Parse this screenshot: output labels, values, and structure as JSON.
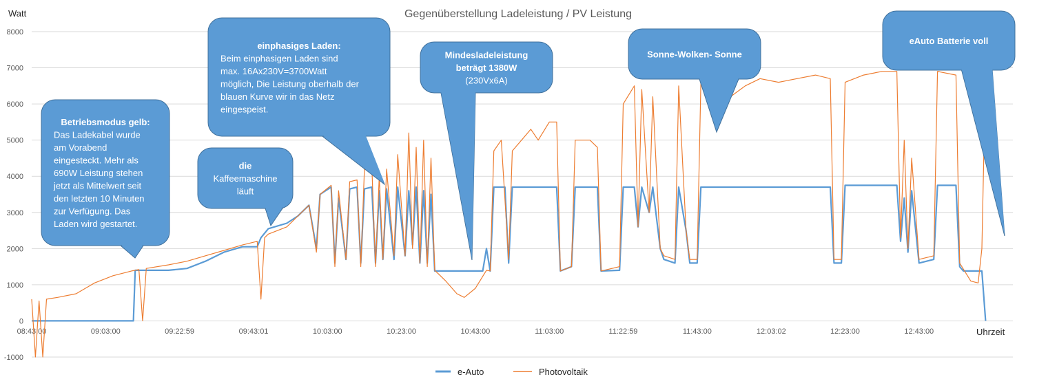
{
  "chart_data": {
    "type": "line",
    "title": "Gegenüberstellung Ladeleistung / PV Leistung",
    "ylabel": "Watt",
    "xlabel": "Uhrzeit",
    "ylim": [
      -1000,
      8000
    ],
    "yticks": [
      -1000,
      0,
      1000,
      2000,
      3000,
      4000,
      5000,
      6000,
      7000,
      8000
    ],
    "xlim": [
      "08:43:00",
      "13:00:00"
    ],
    "xticks": [
      "08:43:00",
      "09:03:00",
      "09:22:59",
      "09:43:01",
      "10:03:00",
      "10:23:00",
      "10:43:00",
      "11:03:00",
      "11:22:59",
      "11:43:00",
      "12:03:02",
      "12:23:00",
      "12:43:00"
    ],
    "grid": true,
    "legend_position": "bottom",
    "series": [
      {
        "name": "e-Auto",
        "color": "#5B9BD5",
        "points": [
          [
            "08:43:00",
            0
          ],
          [
            "09:10:30",
            0
          ],
          [
            "09:11:00",
            1400
          ],
          [
            "09:20:00",
            1400
          ],
          [
            "09:25:00",
            1450
          ],
          [
            "09:30:00",
            1650
          ],
          [
            "09:35:00",
            1900
          ],
          [
            "09:40:00",
            2050
          ],
          [
            "09:44:00",
            2050
          ],
          [
            "09:45:00",
            2300
          ],
          [
            "09:47:00",
            2550
          ],
          [
            "09:52:00",
            2700
          ],
          [
            "09:55:00",
            2900
          ],
          [
            "09:58:00",
            3200
          ],
          [
            "10:00:00",
            2000
          ],
          [
            "10:01:00",
            3500
          ],
          [
            "10:04:00",
            3700
          ],
          [
            "10:05:00",
            1600
          ],
          [
            "10:06:00",
            3400
          ],
          [
            "10:08:00",
            1700
          ],
          [
            "10:09:00",
            3650
          ],
          [
            "10:11:00",
            3700
          ],
          [
            "10:12:00",
            1600
          ],
          [
            "10:13:00",
            3650
          ],
          [
            "10:15:00",
            3700
          ],
          [
            "10:16:00",
            1600
          ],
          [
            "10:17:00",
            3600
          ],
          [
            "10:18:00",
            1700
          ],
          [
            "10:19:00",
            3650
          ],
          [
            "10:21:00",
            1700
          ],
          [
            "10:22:00",
            3700
          ],
          [
            "10:24:00",
            1800
          ],
          [
            "10:25:00",
            3600
          ],
          [
            "10:26:00",
            2100
          ],
          [
            "10:27:00",
            3700
          ],
          [
            "10:28:00",
            1600
          ],
          [
            "10:29:00",
            3600
          ],
          [
            "10:30:00",
            1600
          ],
          [
            "10:31:00",
            3500
          ],
          [
            "10:32:00",
            1380
          ],
          [
            "10:45:00",
            1380
          ],
          [
            "10:46:00",
            2000
          ],
          [
            "10:47:00",
            1380
          ],
          [
            "10:48:00",
            3700
          ],
          [
            "10:51:00",
            3700
          ],
          [
            "10:52:00",
            1600
          ],
          [
            "10:53:00",
            3700
          ],
          [
            "11:05:00",
            3700
          ],
          [
            "11:06:00",
            1380
          ],
          [
            "11:09:00",
            1500
          ],
          [
            "11:10:00",
            3700
          ],
          [
            "11:16:00",
            3700
          ],
          [
            "11:17:00",
            1380
          ],
          [
            "11:22:00",
            1400
          ],
          [
            "11:23:00",
            3700
          ],
          [
            "11:26:00",
            3700
          ],
          [
            "11:27:00",
            2600
          ],
          [
            "11:28:00",
            3700
          ],
          [
            "11:30:00",
            3000
          ],
          [
            "11:31:00",
            3700
          ],
          [
            "11:33:00",
            2000
          ],
          [
            "11:34:00",
            1700
          ],
          [
            "11:37:00",
            1600
          ],
          [
            "11:38:00",
            3700
          ],
          [
            "11:40:00",
            2500
          ],
          [
            "11:41:00",
            1600
          ],
          [
            "11:43:00",
            1600
          ],
          [
            "11:44:00",
            3700
          ],
          [
            "12:00:00",
            3700
          ],
          [
            "12:15:00",
            3700
          ],
          [
            "12:19:00",
            3700
          ],
          [
            "12:20:00",
            1600
          ],
          [
            "12:22:00",
            1600
          ],
          [
            "12:23:00",
            3750
          ],
          [
            "12:37:00",
            3750
          ],
          [
            "12:38:00",
            2200
          ],
          [
            "12:39:00",
            3400
          ],
          [
            "12:40:00",
            1900
          ],
          [
            "12:41:00",
            3600
          ],
          [
            "12:43:00",
            1600
          ],
          [
            "12:47:00",
            1700
          ],
          [
            "12:48:00",
            3750
          ],
          [
            "12:53:00",
            3750
          ],
          [
            "12:54:00",
            1500
          ],
          [
            "12:55:00",
            1380
          ],
          [
            "13:00:00",
            1380
          ],
          [
            "13:01:00",
            0
          ]
        ]
      },
      {
        "name": "Photovoltaik",
        "color": "#ED7D31",
        "points": [
          [
            "08:43:00",
            600
          ],
          [
            "08:44:00",
            -1000
          ],
          [
            "08:45:00",
            550
          ],
          [
            "08:46:00",
            -1000
          ],
          [
            "08:47:00",
            600
          ],
          [
            "08:50:00",
            650
          ],
          [
            "08:55:00",
            750
          ],
          [
            "09:00:00",
            1050
          ],
          [
            "09:05:00",
            1250
          ],
          [
            "09:10:00",
            1380
          ],
          [
            "09:12:00",
            1420
          ],
          [
            "09:13:00",
            0
          ],
          [
            "09:14:00",
            1450
          ],
          [
            "09:20:00",
            1550
          ],
          [
            "09:25:00",
            1650
          ],
          [
            "09:30:00",
            1800
          ],
          [
            "09:35:00",
            1950
          ],
          [
            "09:40:00",
            2100
          ],
          [
            "09:44:00",
            2200
          ],
          [
            "09:45:00",
            600
          ],
          [
            "09:46:00",
            2300
          ],
          [
            "09:47:00",
            2400
          ],
          [
            "09:52:00",
            2600
          ],
          [
            "09:55:00",
            2900
          ],
          [
            "09:58:00",
            3200
          ],
          [
            "10:00:00",
            1900
          ],
          [
            "10:01:00",
            3500
          ],
          [
            "10:04:00",
            3750
          ],
          [
            "10:05:00",
            1500
          ],
          [
            "10:06:00",
            3600
          ],
          [
            "10:08:00",
            1700
          ],
          [
            "10:09:00",
            3850
          ],
          [
            "10:11:00",
            3900
          ],
          [
            "10:12:00",
            1500
          ],
          [
            "10:13:00",
            4200
          ],
          [
            "10:15:00",
            4300
          ],
          [
            "10:16:00",
            1500
          ],
          [
            "10:17:00",
            4000
          ],
          [
            "10:18:00",
            1700
          ],
          [
            "10:19:00",
            4200
          ],
          [
            "10:21:00",
            1800
          ],
          [
            "10:22:00",
            4600
          ],
          [
            "10:24:00",
            1800
          ],
          [
            "10:25:00",
            5200
          ],
          [
            "10:26:00",
            2000
          ],
          [
            "10:27:00",
            4800
          ],
          [
            "10:28:00",
            1600
          ],
          [
            "10:29:00",
            5000
          ],
          [
            "10:30:00",
            1500
          ],
          [
            "10:31:00",
            4500
          ],
          [
            "10:32:00",
            1400
          ],
          [
            "10:35:00",
            1100
          ],
          [
            "10:38:00",
            750
          ],
          [
            "10:40:00",
            650
          ],
          [
            "10:43:00",
            900
          ],
          [
            "10:46:00",
            1400
          ],
          [
            "10:47:00",
            1380
          ],
          [
            "10:48:00",
            4700
          ],
          [
            "10:50:00",
            5000
          ],
          [
            "10:52:00",
            1700
          ],
          [
            "10:53:00",
            4700
          ],
          [
            "10:58:00",
            5300
          ],
          [
            "11:00:00",
            5000
          ],
          [
            "11:03:00",
            5500
          ],
          [
            "11:05:00",
            5500
          ],
          [
            "11:06:00",
            1380
          ],
          [
            "11:09:00",
            1500
          ],
          [
            "11:10:00",
            5000
          ],
          [
            "11:14:00",
            5000
          ],
          [
            "11:16:00",
            4800
          ],
          [
            "11:17:00",
            1380
          ],
          [
            "11:22:00",
            1500
          ],
          [
            "11:23:00",
            6000
          ],
          [
            "11:26:00",
            6500
          ],
          [
            "11:27:00",
            2600
          ],
          [
            "11:28:00",
            6400
          ],
          [
            "11:30:00",
            3000
          ],
          [
            "11:31:00",
            6200
          ],
          [
            "11:33:00",
            2000
          ],
          [
            "11:34:00",
            1800
          ],
          [
            "11:37:00",
            1700
          ],
          [
            "11:38:00",
            6500
          ],
          [
            "11:40:00",
            2500
          ],
          [
            "11:41:00",
            1700
          ],
          [
            "11:43:00",
            1700
          ],
          [
            "11:44:00",
            6600
          ],
          [
            "11:48:00",
            6800
          ],
          [
            "11:52:00",
            6200
          ],
          [
            "11:56:00",
            6500
          ],
          [
            "12:00:00",
            6700
          ],
          [
            "12:05:00",
            6600
          ],
          [
            "12:10:00",
            6700
          ],
          [
            "12:15:00",
            6800
          ],
          [
            "12:19:00",
            6700
          ],
          [
            "12:20:00",
            1700
          ],
          [
            "12:22:00",
            1700
          ],
          [
            "12:23:00",
            6600
          ],
          [
            "12:28:00",
            6800
          ],
          [
            "12:33:00",
            6900
          ],
          [
            "12:37:00",
            6900
          ],
          [
            "12:38:00",
            2300
          ],
          [
            "12:39:00",
            5000
          ],
          [
            "12:40:00",
            2000
          ],
          [
            "12:41:00",
            4500
          ],
          [
            "12:43:00",
            1700
          ],
          [
            "12:47:00",
            1800
          ],
          [
            "12:48:00",
            6900
          ],
          [
            "12:53:00",
            6800
          ],
          [
            "12:54:00",
            1600
          ],
          [
            "12:57:00",
            1100
          ],
          [
            "12:59:00",
            1050
          ],
          [
            "13:00:00",
            2000
          ],
          [
            "13:01:00",
            7000
          ]
        ]
      }
    ],
    "annotations": [
      {
        "id": "betriebsmodus",
        "heading": "Betriebsmodus gelb:",
        "lines": [
          "Das Ladekabel wurde",
          "am Vorabend",
          "eingesteckt. Mehr als",
          "690W Leistung stehen",
          "jetzt als Mittelwert seit",
          "den letzten 10 Minuten",
          "zur Verfügung. Das",
          "Laden wird gestartet."
        ]
      },
      {
        "id": "kaffee",
        "heading": "die",
        "lines": [
          "Kaffeemaschine",
          "läuft"
        ]
      },
      {
        "id": "einphasig",
        "heading": "einphasiges Laden:",
        "lines": [
          "Beim einphasigen Laden sind",
          "max. 16Ax230V=3700Watt",
          "möglich, Die Leistung oberhalb der",
          "blauen Kurve wir in das Netz",
          "eingespeist."
        ]
      },
      {
        "id": "mindest",
        "heading": "Mindesladeleistung",
        "lines": [
          "beträgt 1380W",
          "(230Vx6A)"
        ]
      },
      {
        "id": "sonne",
        "heading": "Sonne-Wolken- Sonne",
        "lines": []
      },
      {
        "id": "voll",
        "heading": "eAuto Batterie voll",
        "lines": []
      }
    ]
  }
}
